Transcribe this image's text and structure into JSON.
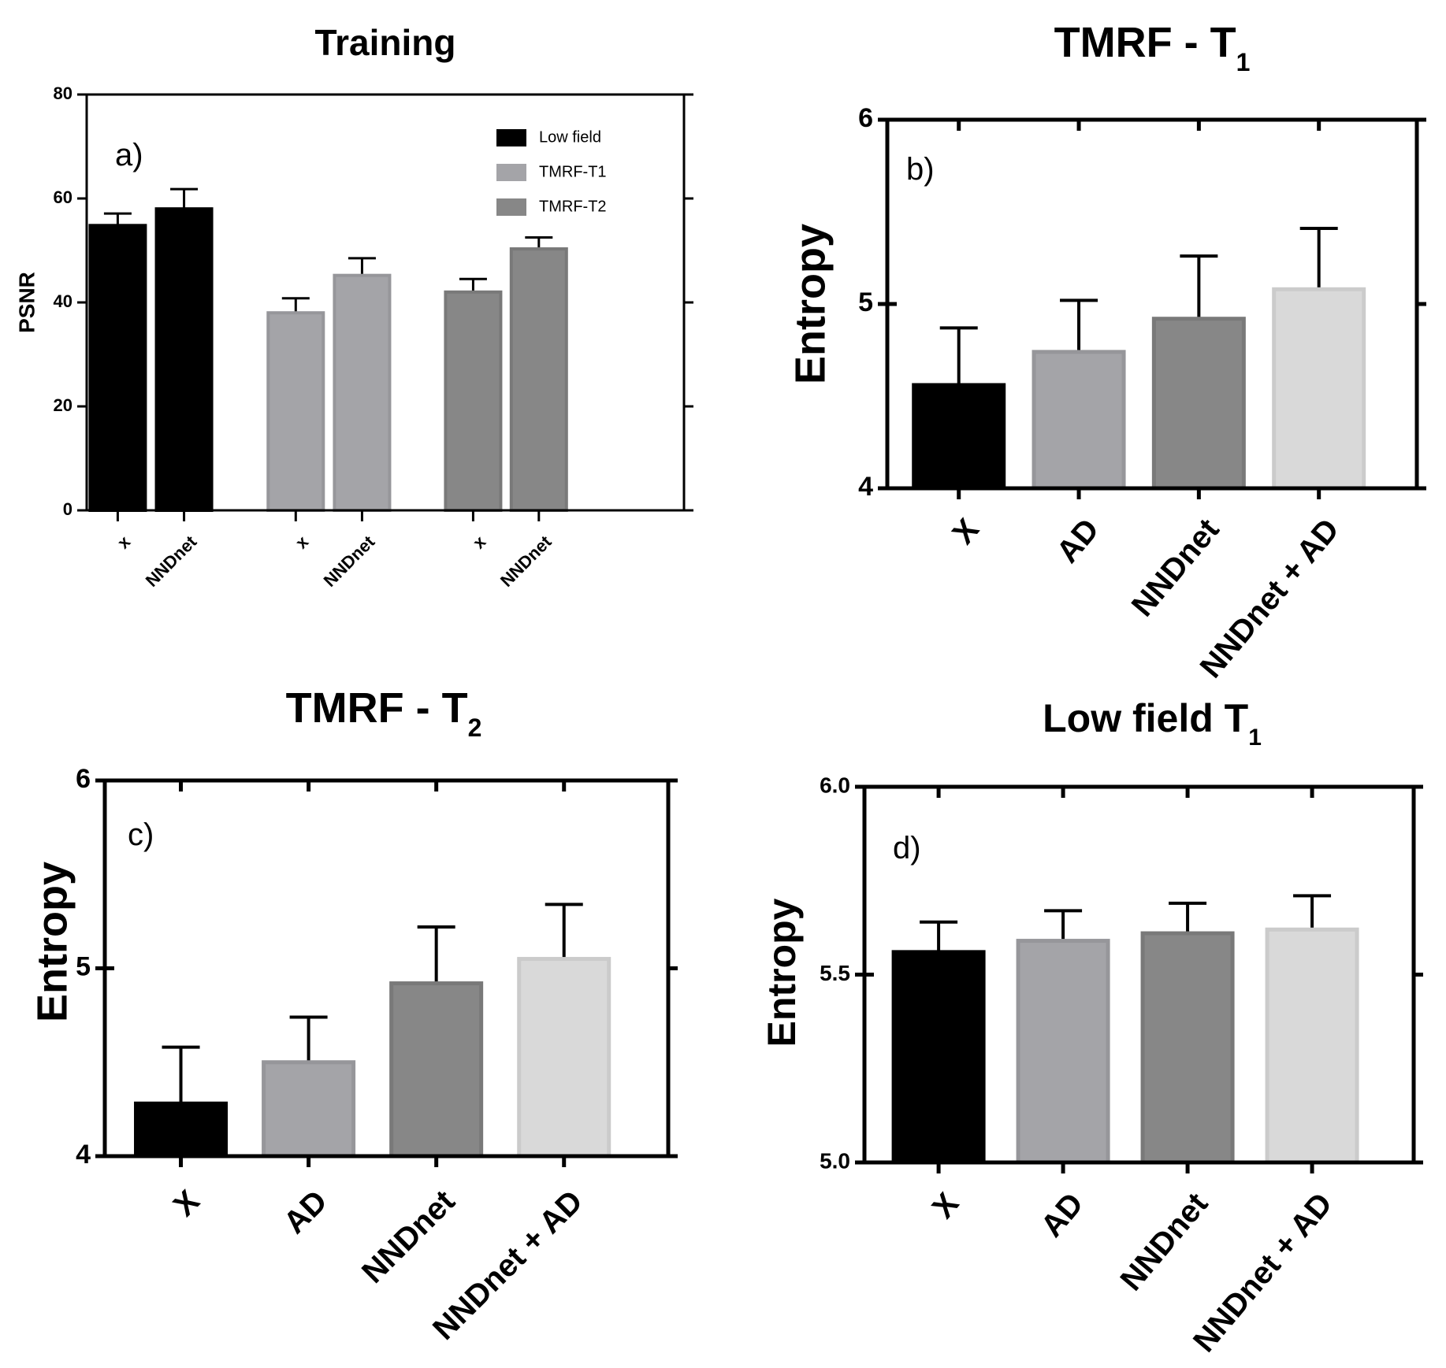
{
  "chart_data": [
    {
      "type": "bar",
      "title": "Training",
      "panel_label": "a)",
      "xlabel": "",
      "ylabel": "PSNR",
      "ylim": [
        0,
        80
      ],
      "yticks": [
        0,
        20,
        40,
        60,
        80
      ],
      "categories": [
        "x",
        "NNDnet",
        "x",
        "NNDnet",
        "x",
        "NNDnet"
      ],
      "groups": [
        {
          "name": "Low field",
          "color": "#000000",
          "categories": [
            "x",
            "NNDnet"
          ],
          "values": [
            54.8,
            58.0
          ],
          "errors": [
            2.3,
            3.8
          ]
        },
        {
          "name": "TMRF-T1",
          "color": "#a4a4a8",
          "categories": [
            "x",
            "NNDnet"
          ],
          "values": [
            38.0,
            45.2
          ],
          "errors": [
            2.8,
            3.3
          ]
        },
        {
          "name": "TMRF-T2",
          "color": "#878787",
          "categories": [
            "x",
            "NNDnet"
          ],
          "values": [
            42.0,
            50.3
          ],
          "errors": [
            2.5,
            2.2
          ]
        }
      ],
      "legend": [
        "Low field",
        "TMRF-T1",
        "TMRF-T2"
      ],
      "legend_position": "top-right"
    },
    {
      "type": "bar",
      "title": "TMRF - T",
      "title_subscript": "1",
      "panel_label": "b)",
      "xlabel": "",
      "ylabel": "Entropy",
      "ylim": [
        4,
        6
      ],
      "yticks": [
        "4",
        "5",
        "6"
      ],
      "categories": [
        "X",
        "AD",
        "NNDnet",
        "NNDnet + AD"
      ],
      "values": [
        4.56,
        4.74,
        4.92,
        5.08
      ],
      "errors": [
        0.31,
        0.28,
        0.34,
        0.33
      ],
      "colors": [
        "#000000",
        "#a4a4a8",
        "#878787",
        "#d9d9d9"
      ]
    },
    {
      "type": "bar",
      "title": "TMRF - T",
      "title_subscript": "2",
      "panel_label": "c)",
      "xlabel": "",
      "ylabel": "Entropy",
      "ylim": [
        4,
        6
      ],
      "yticks": [
        "4",
        "5",
        "6"
      ],
      "categories": [
        "X",
        "AD",
        "NNDnet",
        "NNDnet + AD"
      ],
      "values": [
        4.28,
        4.5,
        4.92,
        5.05
      ],
      "errors": [
        0.3,
        0.24,
        0.3,
        0.29
      ],
      "colors": [
        "#000000",
        "#a4a4a8",
        "#878787",
        "#d9d9d9"
      ]
    },
    {
      "type": "bar",
      "title": "Low field T",
      "title_subscript": "1",
      "panel_label": "d)",
      "xlabel": "",
      "ylabel": "Entropy",
      "ylim": [
        5.0,
        6.0
      ],
      "yticks": [
        "5.0",
        "5.5",
        "6.0"
      ],
      "categories": [
        "X",
        "AD",
        "NNDnet",
        "NNDnet + AD"
      ],
      "values": [
        5.56,
        5.59,
        5.61,
        5.62
      ],
      "errors": [
        0.08,
        0.08,
        0.08,
        0.09
      ],
      "colors": [
        "#000000",
        "#a4a4a8",
        "#878787",
        "#d9d9d9"
      ]
    }
  ]
}
